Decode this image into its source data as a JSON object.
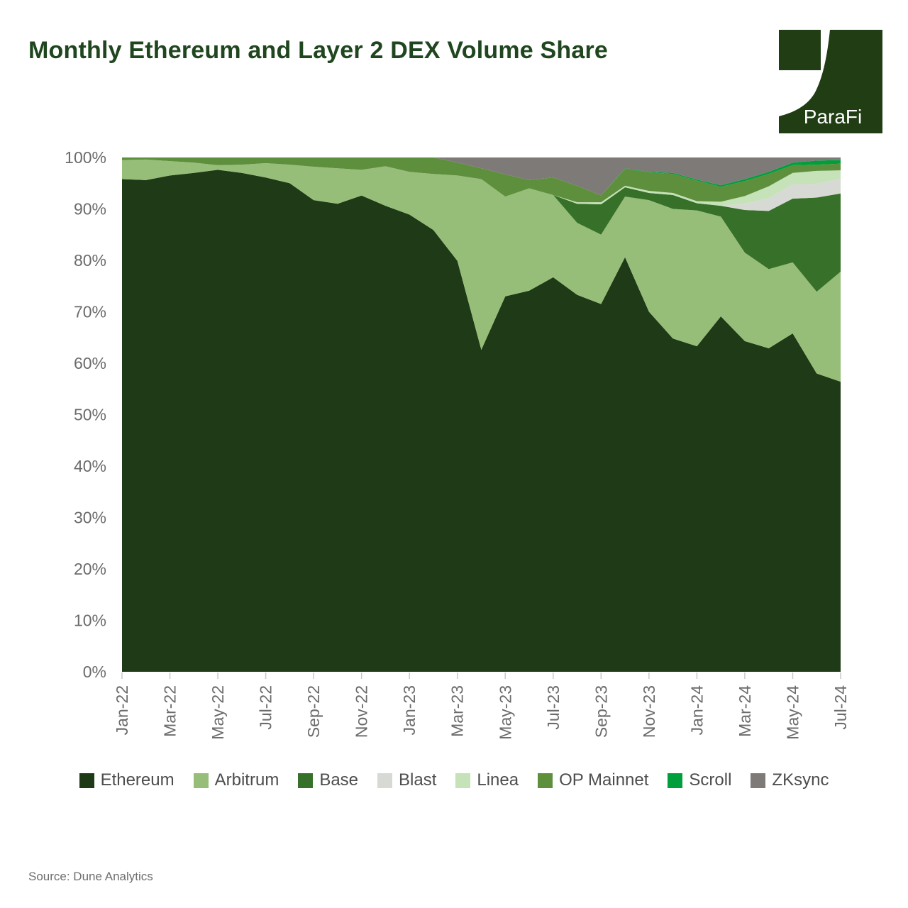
{
  "header": {
    "title": "Monthly Ethereum and Layer 2 DEX Volume Share",
    "logo_text": "ParaFi",
    "logo_color": "#203d14",
    "title_color": "#20461f"
  },
  "source_note": "Source: Dune Analytics",
  "colors": {
    "background": "#ffffff",
    "axis_text": "#6b6b6b",
    "legend_text": "#4d4d4d",
    "tick_mark": "#c9c9c9"
  },
  "chart_data": {
    "type": "area",
    "stacked": true,
    "unit": "%",
    "title": "Monthly Ethereum and Layer 2 DEX Volume Share",
    "xlabel": "",
    "ylabel": "",
    "ylim": [
      0,
      100
    ],
    "y_tick_labels": [
      "0%",
      "10%",
      "20%",
      "30%",
      "40%",
      "50%",
      "60%",
      "70%",
      "80%",
      "90%",
      "100%"
    ],
    "x_tick_step": 2,
    "grid": false,
    "legend_position": "bottom",
    "x": [
      "Jan-22",
      "Feb-22",
      "Mar-22",
      "Apr-22",
      "May-22",
      "Jun-22",
      "Jul-22",
      "Aug-22",
      "Sep-22",
      "Oct-22",
      "Nov-22",
      "Dec-22",
      "Jan-23",
      "Feb-23",
      "Mar-23",
      "Apr-23",
      "May-23",
      "Jun-23",
      "Jul-23",
      "Aug-23",
      "Sep-23",
      "Oct-23",
      "Nov-23",
      "Dec-23",
      "Jan-24",
      "Feb-24",
      "Mar-24",
      "Apr-24",
      "May-24",
      "Jun-24",
      "Jul-24"
    ],
    "series": [
      {
        "name": "Ethereum",
        "color": "#1f3a16",
        "values": [
          95.8,
          95.6,
          96.5,
          97.0,
          97.6,
          97.0,
          96.1,
          95.0,
          91.7,
          91.0,
          92.6,
          90.6,
          88.9,
          85.9,
          79.9,
          62.6,
          73.0,
          74.1,
          76.7,
          73.3,
          71.5,
          80.6,
          70.0,
          64.8,
          63.3,
          69.1,
          64.3,
          62.9,
          65.8,
          58.0,
          56.4
        ]
      },
      {
        "name": "Arbitrum",
        "color": "#96be78",
        "values": [
          3.7,
          4.0,
          2.8,
          2.0,
          0.9,
          1.6,
          2.8,
          3.6,
          6.5,
          6.9,
          5.0,
          7.7,
          8.3,
          10.9,
          16.6,
          33.2,
          19.4,
          19.9,
          16.0,
          14.0,
          13.5,
          11.8,
          21.7,
          25.2,
          26.4,
          19.4,
          17.2,
          15.4,
          13.8,
          15.9,
          21.4
        ]
      },
      {
        "name": "Base",
        "color": "#377029",
        "values": [
          0,
          0,
          0,
          0,
          0,
          0,
          0,
          0,
          0,
          0,
          0,
          0,
          0,
          0,
          0,
          0,
          0,
          0,
          0,
          3.7,
          5.9,
          1.8,
          1.4,
          2.7,
          1.4,
          2.1,
          8.3,
          11.3,
          12.4,
          18.3,
          15.2
        ]
      },
      {
        "name": "Blast",
        "color": "#d7dad4",
        "values": [
          0,
          0,
          0,
          0,
          0,
          0,
          0,
          0,
          0,
          0,
          0,
          0,
          0,
          0,
          0,
          0,
          0,
          0,
          0,
          0,
          0,
          0,
          0,
          0,
          0,
          0,
          1.2,
          2.5,
          2.8,
          2.7,
          2.9
        ]
      },
      {
        "name": "Linea",
        "color": "#c6e2b8",
        "values": [
          0,
          0,
          0,
          0,
          0,
          0,
          0,
          0,
          0,
          0,
          0,
          0,
          0,
          0,
          0,
          0,
          0,
          0,
          0,
          0.3,
          0.4,
          0.3,
          0.4,
          0.4,
          0.4,
          0.8,
          1.5,
          2.3,
          2.2,
          2.5,
          1.6
        ]
      },
      {
        "name": "OP Mainnet",
        "color": "#5d8f3c",
        "values": [
          0.5,
          0.4,
          0.7,
          1.0,
          1.5,
          1.4,
          1.1,
          1.4,
          1.8,
          2.1,
          2.4,
          1.7,
          2.8,
          3.2,
          2.5,
          2.1,
          4.3,
          1.6,
          3.4,
          3.2,
          1.3,
          3.3,
          3.6,
          3.7,
          4.0,
          2.9,
          2.9,
          2.4,
          1.5,
          1.2,
          1.3
        ]
      },
      {
        "name": "Scroll",
        "color": "#009f3c",
        "values": [
          0,
          0,
          0,
          0,
          0,
          0,
          0,
          0,
          0,
          0,
          0,
          0,
          0,
          0,
          0,
          0,
          0,
          0,
          0,
          0,
          0,
          0.1,
          0.1,
          0.2,
          0.2,
          0.3,
          0.4,
          0.4,
          0.5,
          0.8,
          0.7
        ]
      },
      {
        "name": "ZKsync",
        "color": "#7e7a77",
        "values": [
          0,
          0,
          0,
          0,
          0,
          0,
          0,
          0,
          0,
          0,
          0,
          0,
          0,
          0,
          1.0,
          2.1,
          3.3,
          4.4,
          3.9,
          5.5,
          7.4,
          2.1,
          2.8,
          3.0,
          4.3,
          5.4,
          4.2,
          2.8,
          1.0,
          0.6,
          0.5
        ]
      }
    ]
  }
}
